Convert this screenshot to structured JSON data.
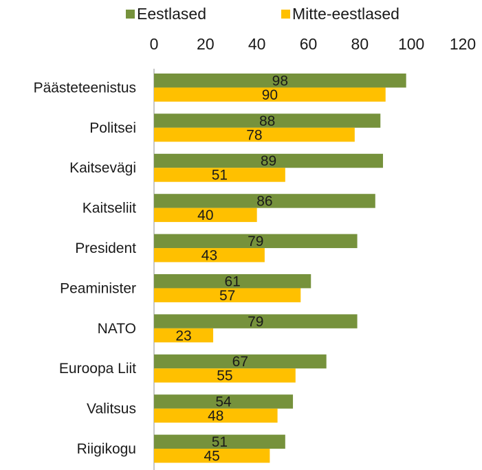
{
  "chart_data": {
    "type": "bar",
    "orientation": "horizontal",
    "categories": [
      "Päästeteenistus",
      "Politsei",
      "Kaitsevägi",
      "Kaitseliit",
      "President",
      "Peaminister",
      "NATO",
      "Euroopa Liit",
      "Valitsus",
      "Riigikogu"
    ],
    "series": [
      {
        "name": "Eestlased",
        "values": [
          98,
          88,
          89,
          86,
          79,
          61,
          79,
          67,
          54,
          51
        ],
        "color": "#76923c"
      },
      {
        "name": "Mitte-eestlased",
        "values": [
          90,
          78,
          51,
          40,
          43,
          57,
          23,
          55,
          48,
          45
        ],
        "color": "#ffc000"
      }
    ],
    "xlim": [
      0,
      120
    ],
    "x_ticks": [
      0,
      20,
      40,
      60,
      80,
      100,
      120
    ],
    "x_axis_position": "top",
    "legend_position": "top",
    "data_labels": true,
    "grid": false
  }
}
